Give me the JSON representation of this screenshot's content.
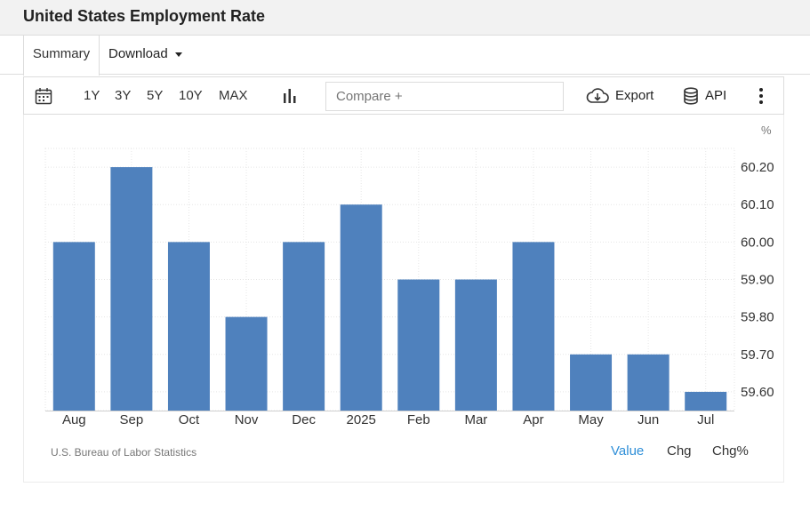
{
  "header": {
    "title": "United States Employment Rate"
  },
  "tabs": {
    "summary": "Summary",
    "download": "Download"
  },
  "toolbar": {
    "ranges": [
      "1Y",
      "3Y",
      "5Y",
      "10Y",
      "MAX"
    ],
    "compare_placeholder": "Compare +",
    "export_label": "Export",
    "api_label": "API"
  },
  "footer": {
    "source": "U.S. Bureau of Labor Statistics",
    "modes": [
      "Value",
      "Chg",
      "Chg%"
    ],
    "active_mode": "Value"
  },
  "colors": {
    "bar": "#4f81bd",
    "accent": "#2f8fd8",
    "grid": "#e6e6e6"
  },
  "chart_data": {
    "type": "bar",
    "categories": [
      "Aug",
      "Sep",
      "Oct",
      "Nov",
      "Dec",
      "2025",
      "Feb",
      "Mar",
      "Apr",
      "May",
      "Jun",
      "Jul"
    ],
    "values": [
      60.0,
      60.2,
      60.0,
      59.8,
      60.0,
      60.1,
      59.9,
      59.9,
      60.0,
      59.7,
      59.7,
      59.6
    ],
    "unit": "%",
    "yticks": [
      "59.60",
      "59.70",
      "59.80",
      "59.90",
      "60.00",
      "60.10",
      "60.20"
    ],
    "ylim": [
      59.55,
      60.25
    ],
    "grid": true,
    "y_axis_side": "right"
  }
}
